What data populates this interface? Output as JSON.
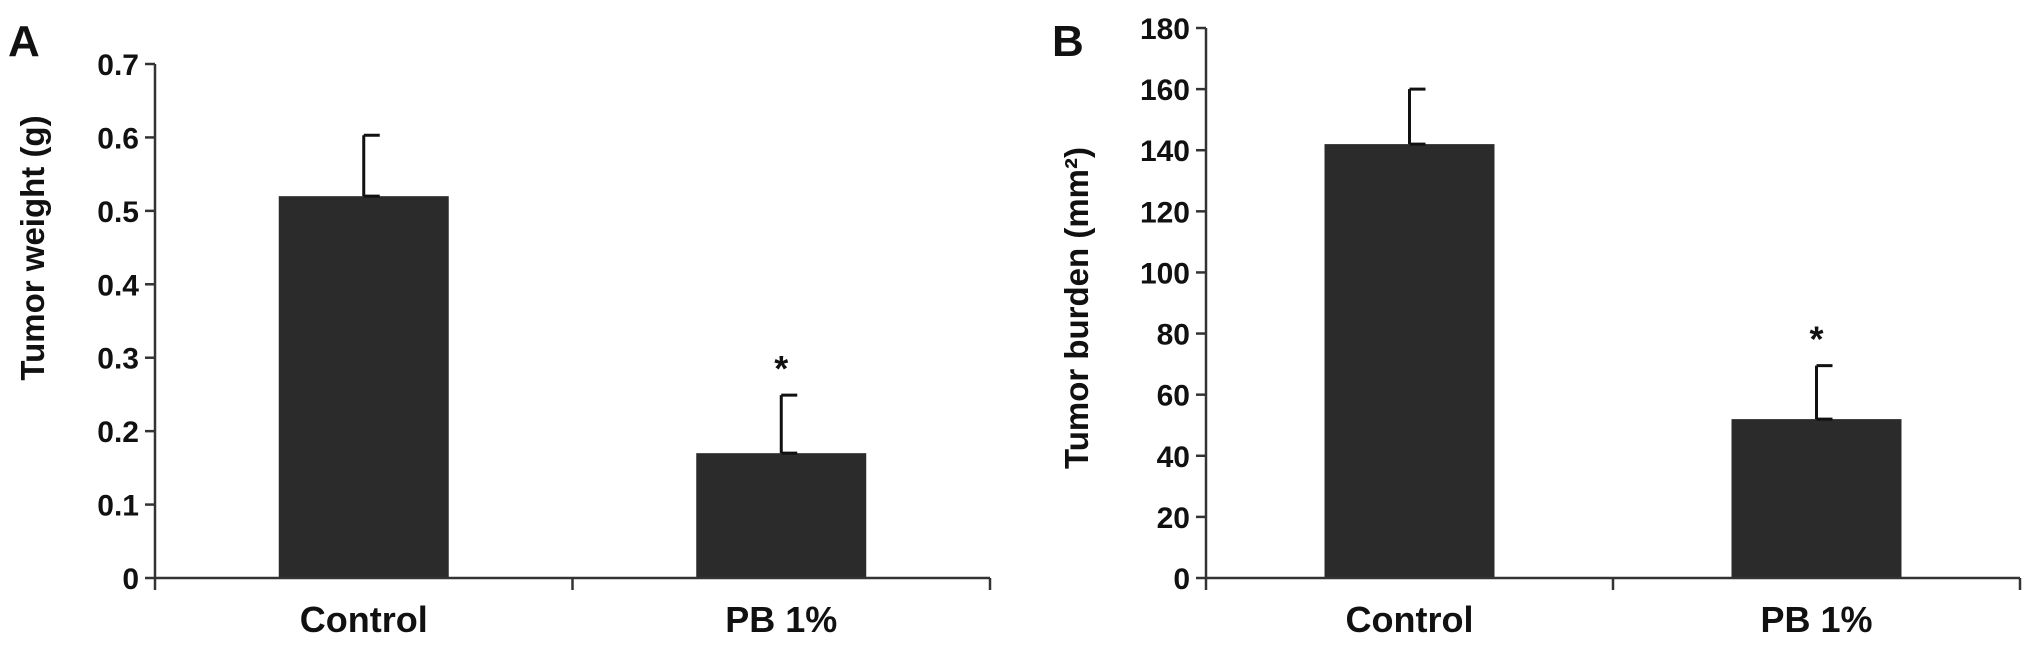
{
  "colors": {
    "bar": "#2b2b2b",
    "axis": "#333333",
    "text": "#111111"
  },
  "chart_data": [
    {
      "panel_label": "A",
      "type": "bar",
      "categories": [
        "Control",
        "PB 1%"
      ],
      "values": [
        0.52,
        0.17
      ],
      "error": [
        0.083,
        0.079
      ],
      "significance": [
        "",
        "*"
      ],
      "ylabel": "Tumor weight (g)",
      "xlabel": "",
      "ylim": [
        0,
        0.7
      ],
      "yticks": [
        "0",
        "0.1",
        "0.2",
        "0.3",
        "0.4",
        "0.5",
        "0.6",
        "0.7"
      ],
      "grid": false
    },
    {
      "panel_label": "B",
      "type": "bar",
      "categories": [
        "Control",
        "PB 1%"
      ],
      "values": [
        142,
        52
      ],
      "error": [
        18,
        17.5
      ],
      "significance": [
        "",
        "*"
      ],
      "ylabel": "Tumor burden (mm²)",
      "xlabel": "",
      "ylim": [
        0,
        180
      ],
      "yticks": [
        "0",
        "20",
        "40",
        "60",
        "80",
        "100",
        "120",
        "140",
        "160",
        "180"
      ],
      "grid": false
    }
  ]
}
